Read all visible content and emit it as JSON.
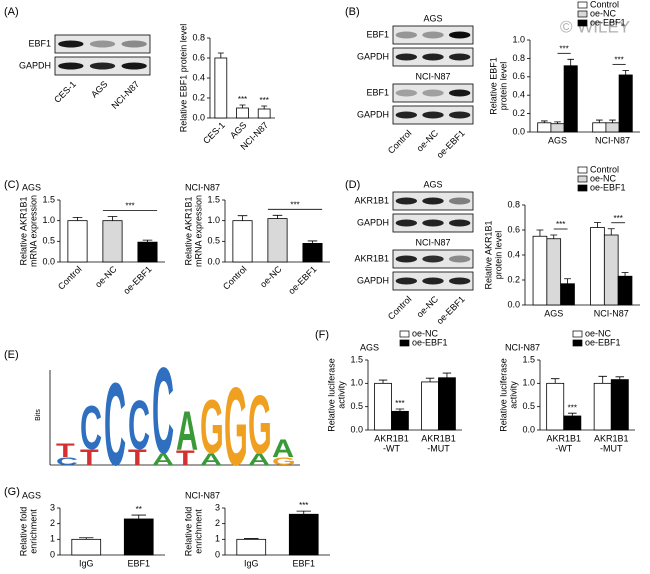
{
  "panels": [
    "(A)",
    "(B)",
    "(C)",
    "(D)",
    "(E)",
    "(F)",
    "(G)"
  ],
  "watermark": "© WILEY",
  "blots": [
    {
      "lanes": [
        "CES-1",
        "AGS",
        "NCI-N87"
      ],
      "groups": [
        {
          "rows": [
            "EBF1",
            "GAPDH"
          ]
        }
      ]
    },
    {
      "lanes": [
        "Control",
        "oe-NC",
        "oe-EBF1"
      ],
      "groups": [
        {
          "title": "AGS",
          "rows": [
            "EBF1",
            "GAPDH"
          ]
        },
        {
          "title": "NCI-N87",
          "rows": [
            "EBF1",
            "GAPDH"
          ]
        }
      ]
    },
    {
      "lanes": [
        "Control",
        "oe-NC",
        "oe-EBF1"
      ],
      "groups": [
        {
          "title": "AGS",
          "rows": [
            "AKR1B1",
            "GAPDH"
          ]
        },
        {
          "title": "NCI-N87",
          "rows": [
            "AKR1B1",
            "GAPDH"
          ]
        }
      ]
    }
  ],
  "logo": {
    "ylabel": "Bits",
    "columns": [
      [
        "T",
        "C"
      ],
      [
        "C",
        "T"
      ],
      [
        "C"
      ],
      [
        "C",
        "T"
      ],
      [
        "C",
        "A"
      ],
      [
        "A",
        "T"
      ],
      [
        "G",
        "A"
      ],
      [
        "G"
      ],
      [
        "G",
        "A"
      ],
      [
        "A",
        "G"
      ]
    ]
  },
  "chart_data": [
    {
      "type": "bar",
      "ylabel": [
        "Relative EBF1 protein level"
      ],
      "categories": [
        "CES-1",
        "AGS",
        "NCI-N87"
      ],
      "values": [
        0.6,
        0.1,
        0.09
      ],
      "errors": [
        0.05,
        0.03,
        0.03
      ],
      "colors": [
        "#ffffff",
        "#ffffff",
        "#ffffff"
      ],
      "sig": [
        null,
        "***",
        "***"
      ],
      "sig_bracket": false,
      "rotated_labels": true,
      "ylim": [
        0,
        0.8
      ],
      "yticks": [
        {
          "value": 0,
          "label": "0.0"
        },
        0.2,
        0.4,
        0.6,
        0.8
      ]
    },
    {
      "type": "bar",
      "ylabel": [
        "Relative EBF1",
        "protein level"
      ],
      "categories": [
        "AGS",
        "NCI-N87"
      ],
      "series": [
        {
          "name": "Control",
          "color": "#ffffff",
          "values": [
            0.1,
            0.1
          ],
          "errors": [
            0.02,
            0.03
          ]
        },
        {
          "name": "oe-NC",
          "color": "#d9d9d9",
          "values": [
            0.09,
            0.1
          ],
          "errors": [
            0.02,
            0.03
          ]
        },
        {
          "name": "oe-EBF1",
          "color": "#000000",
          "values": [
            0.72,
            0.62
          ],
          "errors": [
            0.07,
            0.05
          ]
        }
      ],
      "sig": [
        "***",
        "***"
      ],
      "sig_bracket": true,
      "rotated_labels": false,
      "legend": "upper right",
      "ylim": [
        0,
        1.0
      ],
      "yticks": [
        {
          "value": 0,
          "label": "0.0"
        },
        0.2,
        0.4,
        0.6,
        0.8,
        {
          "value": 1.0,
          "label": "1.0"
        }
      ]
    },
    {
      "type": "bar",
      "title": "AGS",
      "ylabel": [
        "Relative AKR1B1",
        "mRNA expression"
      ],
      "categories": [
        "Control",
        "oe-NC",
        "oe-EBF1"
      ],
      "values": [
        1.0,
        1.0,
        0.48
      ],
      "errors": [
        0.08,
        0.1,
        0.05
      ],
      "colors": [
        "#ffffff",
        "#d9d9d9",
        "#000000"
      ],
      "sig": [
        null,
        null,
        "***"
      ],
      "sig_bracket": true,
      "rotated_labels": true,
      "ylim": [
        0,
        1.5
      ],
      "yticks": [
        {
          "value": 0,
          "label": "0.0"
        },
        0.5,
        {
          "value": 1.0,
          "label": "1.0"
        },
        1.5
      ]
    },
    {
      "type": "bar",
      "title": "NCI-N87",
      "ylabel": [
        "Relative AKR1B1",
        "mRNA expression"
      ],
      "categories": [
        "Control",
        "oe-NC",
        "oe-EBF1"
      ],
      "values": [
        1.0,
        1.05,
        0.45
      ],
      "errors": [
        0.12,
        0.08,
        0.06
      ],
      "colors": [
        "#ffffff",
        "#d9d9d9",
        "#000000"
      ],
      "sig": [
        null,
        null,
        "***"
      ],
      "sig_bracket": true,
      "rotated_labels": true,
      "ylim": [
        0,
        1.5
      ],
      "yticks": [
        {
          "value": 0,
          "label": "0.0"
        },
        0.5,
        {
          "value": 1.0,
          "label": "1.0"
        },
        1.5
      ]
    },
    {
      "type": "bar",
      "ylabel": [
        "Relative AKR1B1",
        "protein level"
      ],
      "categories": [
        "AGS",
        "NCI-N87"
      ],
      "series": [
        {
          "name": "Control",
          "color": "#ffffff",
          "values": [
            0.55,
            0.62
          ],
          "errors": [
            0.05,
            0.04
          ]
        },
        {
          "name": "oe-NC",
          "color": "#d9d9d9",
          "values": [
            0.53,
            0.56
          ],
          "errors": [
            0.03,
            0.05
          ]
        },
        {
          "name": "oe-EBF1",
          "color": "#000000",
          "values": [
            0.17,
            0.23
          ],
          "errors": [
            0.04,
            0.03
          ]
        }
      ],
      "sig": [
        "***",
        "***"
      ],
      "sig_bracket": true,
      "rotated_labels": false,
      "legend": "upper right",
      "ylim": [
        0,
        0.8
      ],
      "yticks": [
        {
          "value": 0,
          "label": "0.0"
        },
        0.2,
        0.4,
        0.6,
        0.8
      ]
    },
    {
      "type": "bar",
      "title": "AGS",
      "ylabel": [
        "Relative luciferase",
        "activity"
      ],
      "categories": [
        [
          "AKR1B1",
          "-WT"
        ],
        [
          "AKR1B1",
          "-MUT"
        ]
      ],
      "series": [
        {
          "name": "oe-NC",
          "color": "#ffffff",
          "values": [
            1.0,
            1.03
          ],
          "errors": [
            0.07,
            0.08
          ]
        },
        {
          "name": "oe-EBF1",
          "color": "#000000",
          "values": [
            0.4,
            1.12
          ],
          "errors": [
            0.05,
            0.1
          ]
        }
      ],
      "sig": [
        "***",
        null
      ],
      "sig_bracket": false,
      "rotated_labels": false,
      "legend": "upper right",
      "ylim": [
        0,
        1.5
      ],
      "yticks": [
        {
          "value": 0,
          "label": "0.0"
        },
        0.5,
        {
          "value": 1.0,
          "label": "1.0"
        },
        1.5
      ]
    },
    {
      "type": "bar",
      "title": "NCI-N87",
      "ylabel": [
        "Relative luciferase",
        "activity"
      ],
      "categories": [
        [
          "AKR1B1",
          "-WT"
        ],
        [
          "AKR1B1",
          "-MUT"
        ]
      ],
      "series": [
        {
          "name": "oe-NC",
          "color": "#ffffff",
          "values": [
            1.0,
            1.0
          ],
          "errors": [
            0.1,
            0.15
          ]
        },
        {
          "name": "oe-EBF1",
          "color": "#000000",
          "values": [
            0.3,
            1.08
          ],
          "errors": [
            0.06,
            0.06
          ]
        }
      ],
      "sig": [
        "***",
        null
      ],
      "sig_bracket": false,
      "rotated_labels": false,
      "legend": "upper right",
      "ylim": [
        0,
        1.5
      ],
      "yticks": [
        {
          "value": 0,
          "label": "0.0"
        },
        0.5,
        {
          "value": 1.0,
          "label": "1.0"
        },
        1.5
      ]
    },
    {
      "type": "bar",
      "title": "AGS",
      "ylabel": [
        "Relative fold",
        "enrichment"
      ],
      "categories": [
        "IgG",
        "EBF1"
      ],
      "values": [
        1.0,
        2.3
      ],
      "errors": [
        0.1,
        0.25
      ],
      "colors": [
        "#ffffff",
        "#000000"
      ],
      "sig": [
        null,
        "**"
      ],
      "sig_bracket": false,
      "rotated_labels": false,
      "ylim": [
        0,
        3
      ],
      "yticks": [
        0,
        1,
        2,
        3
      ]
    },
    {
      "type": "bar",
      "title": "NCI-N87",
      "ylabel": [
        "Relative fold",
        "enrichment"
      ],
      "categories": [
        "IgG",
        "EBF1"
      ],
      "values": [
        1.0,
        2.6
      ],
      "errors": [
        0.05,
        0.2
      ],
      "colors": [
        "#ffffff",
        "#000000"
      ],
      "sig": [
        null,
        "***"
      ],
      "sig_bracket": false,
      "rotated_labels": false,
      "ylim": [
        0,
        3
      ],
      "yticks": [
        0,
        1,
        2,
        3
      ]
    }
  ]
}
